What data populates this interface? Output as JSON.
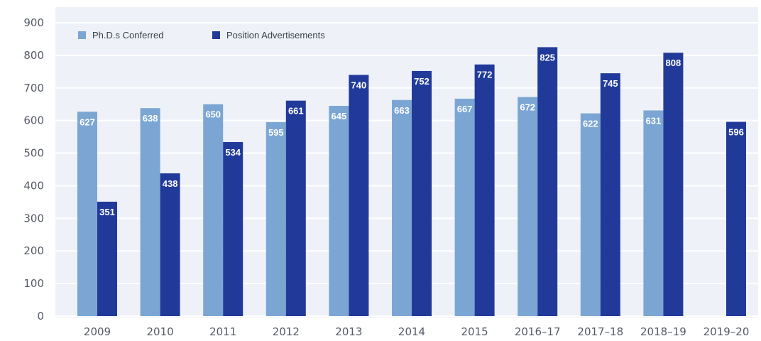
{
  "chart_data": {
    "type": "bar",
    "categories": [
      "2009",
      "2010",
      "2011",
      "2012",
      "2013",
      "2014",
      "2015",
      "2016–17",
      "2017–18",
      "2018–19",
      "2019–20"
    ],
    "series": [
      {
        "name": "Ph.D.s Conferred",
        "color": "#7ba6d4",
        "values": [
          627,
          638,
          650,
          595,
          645,
          663,
          667,
          672,
          622,
          631,
          null
        ]
      },
      {
        "name": "Position Advertisements",
        "color": "#213a9a",
        "values": [
          351,
          438,
          534,
          661,
          740,
          752,
          772,
          825,
          745,
          808,
          596
        ]
      }
    ],
    "yticks": [
      "0",
      "100",
      "200",
      "300",
      "400",
      "500",
      "600",
      "700",
      "800",
      "900"
    ],
    "ylim": [
      0,
      900
    ],
    "grid": true,
    "legend_position": "top-left",
    "plot_background": "#eef1f8",
    "grid_color": "#ffffff"
  }
}
